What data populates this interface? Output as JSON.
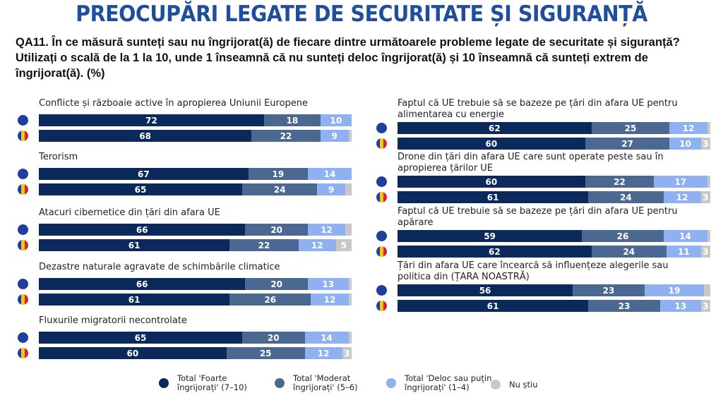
{
  "title": "PREOCUPĂRI LEGATE DE SECURITATE ȘI SIGURANȚĂ",
  "question": "QA11. În ce măsură sunteți sau nu îngrijorat(ă) de fiecare dintre următoarele probleme legate de securitate și siguranță? Utilizați o scală de la 1 la 10, unde 1 înseamnă că nu sunteți deloc îngrijorat(ă) și 10 înseamnă că sunteți extrem de îngrijorat(ă). (%)",
  "colors": {
    "very": "#0b2a5b",
    "moderate": "#4a6890",
    "little": "#8fb1f2",
    "dontknow": "#c8c8c8",
    "eu_flag": "#1f3fa0",
    "ro_blue": "#1f3fa0",
    "ro_yellow": "#f5c518",
    "ro_red": "#d9232e"
  },
  "chart_data": {
    "type": "bar",
    "orientation": "horizontal-stacked",
    "title": "PREOCUPĂRI LEGATE DE SECURITATE ȘI SIGURANȚĂ",
    "unit": "%",
    "series_names": [
      "Total 'Foarte îngrijorați' (7–10)",
      "Total 'Moderat îngrijorați' (5–6)",
      "Total 'Deloc sau puțin îngrijorați' (1–4)",
      "Nu știu"
    ],
    "groups": [
      "EU",
      "RO"
    ],
    "legend_position": "bottom",
    "items": [
      {
        "label": "Conflicte și războaie active în apropierea Uniunii Europene",
        "column": "left",
        "EU": [
          72,
          18,
          10,
          0
        ],
        "RO": [
          68,
          22,
          9,
          1
        ],
        "labels_EU": [
          "72",
          "18",
          "10",
          ""
        ],
        "labels_RO": [
          "68",
          "22",
          "9",
          ""
        ]
      },
      {
        "label": "Terorism",
        "column": "left",
        "EU": [
          67,
          19,
          14,
          0
        ],
        "RO": [
          65,
          24,
          9,
          2
        ],
        "labels_EU": [
          "67",
          "19",
          "14",
          ""
        ],
        "labels_RO": [
          "65",
          "24",
          "9",
          ""
        ]
      },
      {
        "label": "Atacuri cibernetice din țări din afara UE",
        "column": "left",
        "EU": [
          66,
          20,
          12,
          2
        ],
        "RO": [
          61,
          22,
          12,
          5
        ],
        "labels_EU": [
          "66",
          "20",
          "12",
          ""
        ],
        "labels_RO": [
          "61",
          "22",
          "12",
          "5"
        ]
      },
      {
        "label": "Dezastre naturale agravate de schimbările climatice",
        "column": "left",
        "EU": [
          66,
          20,
          13,
          1
        ],
        "RO": [
          61,
          26,
          12,
          1
        ],
        "labels_EU": [
          "66",
          "20",
          "13",
          ""
        ],
        "labels_RO": [
          "61",
          "26",
          "12",
          ""
        ]
      },
      {
        "label": "Fluxurile migratorii necontrolate",
        "column": "left",
        "EU": [
          65,
          20,
          14,
          1
        ],
        "RO": [
          60,
          25,
          12,
          3
        ],
        "labels_EU": [
          "65",
          "20",
          "14",
          ""
        ],
        "labels_RO": [
          "60",
          "25",
          "12",
          "3"
        ]
      },
      {
        "label": "Faptul că UE trebuie să se bazeze pe țări din afara UE pentru alimentarea cu energie",
        "column": "right",
        "EU": [
          62,
          25,
          12,
          1
        ],
        "RO": [
          60,
          27,
          10,
          3
        ],
        "labels_EU": [
          "62",
          "25",
          "12",
          ""
        ],
        "labels_RO": [
          "60",
          "27",
          "10",
          "3"
        ]
      },
      {
        "label": "Drone din țări din afara UE care sunt operate peste sau în apropierea țărilor UE",
        "column": "right",
        "EU": [
          60,
          22,
          17,
          1
        ],
        "RO": [
          61,
          24,
          12,
          3
        ],
        "labels_EU": [
          "60",
          "22",
          "17",
          ""
        ],
        "labels_RO": [
          "61",
          "24",
          "12",
          "3"
        ]
      },
      {
        "label": "Faptul că UE trebuie să se bazeze pe țări din afara UE pentru apărare",
        "column": "right",
        "EU": [
          59,
          26,
          14,
          1
        ],
        "RO": [
          62,
          24,
          11,
          3
        ],
        "labels_EU": [
          "59",
          "26",
          "14",
          ""
        ],
        "labels_RO": [
          "62",
          "24",
          "11",
          "3"
        ]
      },
      {
        "label": "Țări din afara UE care încearcă să influențeze alegerile sau politica din (ȚARA NOASTRĂ)",
        "column": "right",
        "EU": [
          56,
          23,
          19,
          2
        ],
        "RO": [
          61,
          23,
          13,
          3
        ],
        "labels_EU": [
          "56",
          "23",
          "19",
          ""
        ],
        "labels_RO": [
          "61",
          "23",
          "13",
          "3"
        ]
      }
    ]
  },
  "legend": [
    {
      "line1": "Total 'Foarte",
      "line2": "îngrijorați' (7–10)",
      "color_key": "very"
    },
    {
      "line1": "Total 'Moderat",
      "line2": "îngrijorați' (5–6)",
      "color_key": "moderate"
    },
    {
      "line1": "Total 'Deloc sau puțin",
      "line2": "îngrijorați' (1–4)",
      "color_key": "little"
    },
    {
      "line1": "Nu știu",
      "line2": "",
      "color_key": "dontknow"
    }
  ]
}
